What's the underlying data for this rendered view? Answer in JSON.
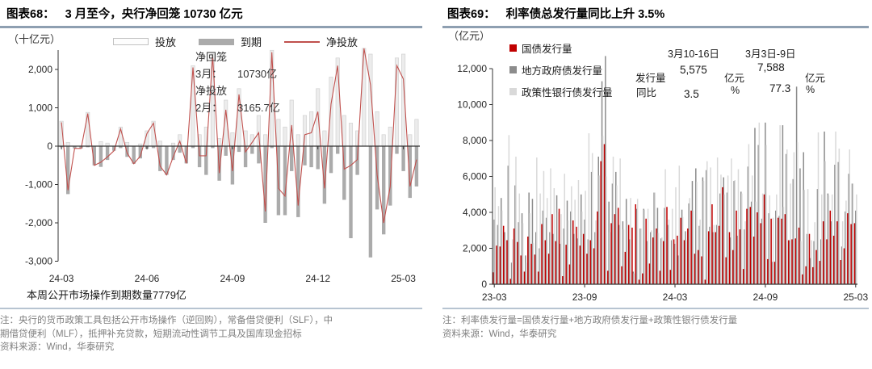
{
  "page": {
    "background": "#ffffff",
    "accent_rule_color": "#8e9fb1",
    "footer_rule_color": "#b7c4d1"
  },
  "left_panel": {
    "title_prefix": "图表68：",
    "title": "3 月至今，央行净回笼 10730 亿元",
    "unit": "（十亿元）",
    "annotation": {
      "l1": "净回笼",
      "l2_label": "3月：",
      "l2_value": "10730亿",
      "l3": "净投放",
      "l4_label": "2月：",
      "l4_value": "3165.7亿"
    },
    "bottom_note": "本周公开市场操作到期数量7779亿",
    "footnote_line1": "注：央行的货币政策工具包括公开市场操作（逆回购），常备借贷便利（SLF），中",
    "footnote_line2": "期借贷便利（MLF），抵押补充贷款，短期流动性调节工具及国库现金招标",
    "source": "资料来源：Wind，华泰研究"
  },
  "right_panel": {
    "title_prefix": "图表69：",
    "title": "利率债总发行量同比上升 3.5%",
    "unit": "（亿元）",
    "stats": {
      "period1": "3月10-16日",
      "period2": "3月3日-9日",
      "row1_label": "发行量",
      "row1_v1": "5,575",
      "row1_u1": "亿元",
      "row1_v2": "7,588",
      "row1_u2": "亿元",
      "row2_label": "同比",
      "row2_v1": "3.5",
      "row2_u1": "%",
      "row2_v2": "77.3",
      "row2_u2": "%"
    },
    "footnote_line1": "注：利率债发行量=国债发行量+地方政府债发行量+政策性银行债发行量",
    "source": "资料来源：Wind，华泰研究"
  },
  "chart_data": [
    {
      "type": "bar",
      "subtype": "bars-with-line",
      "title": "3 月至今，央行净回笼 10730 亿元",
      "ylabel": "十亿元",
      "ylim": [
        -3000,
        2500
      ],
      "grid": false,
      "legend_position": "top",
      "yticks": [
        {
          "v": 2000,
          "label": "2,000"
        },
        {
          "v": 1000,
          "label": "1,000"
        },
        {
          "v": 0,
          "label": "0"
        },
        {
          "v": -1000,
          "label": "-1,000"
        },
        {
          "v": -2000,
          "label": "-2,000"
        },
        {
          "v": -3000,
          "label": "-3,000"
        }
      ],
      "xticks": [
        {
          "i": 0,
          "label": "24-03"
        },
        {
          "i": 13,
          "label": "24-06"
        },
        {
          "i": 26,
          "label": "24-09"
        },
        {
          "i": 39,
          "label": "24-12"
        },
        {
          "i": 52,
          "label": "25-03"
        }
      ],
      "series": [
        {
          "name": "投放",
          "type": "bar",
          "direction": "positive",
          "color": "#ececec",
          "stroke": "#d2d2d2",
          "values": [
            650,
            100,
            0,
            0,
            880,
            0,
            120,
            80,
            0,
            500,
            100,
            0,
            60,
            400,
            650,
            130,
            0,
            80,
            300,
            0,
            2100,
            300,
            500,
            2400,
            200,
            1200,
            350,
            1500,
            400,
            300,
            800,
            300,
            2500,
            700,
            500,
            1200,
            300,
            800,
            900,
            1500,
            400,
            1800,
            2300,
            800,
            600,
            400,
            2550,
            2400,
            900,
            300,
            500,
            2300,
            2400,
            300,
            700
          ]
        },
        {
          "name": "到期",
          "type": "bar",
          "direction": "negative",
          "color": "#ababab",
          "values": [
            30,
            1250,
            60,
            60,
            30,
            500,
            540,
            360,
            120,
            50,
            280,
            460,
            320,
            70,
            50,
            650,
            750,
            360,
            170,
            450,
            50,
            550,
            750,
            50,
            900,
            250,
            1000,
            150,
            550,
            200,
            450,
            2000,
            50,
            1800,
            1800,
            650,
            1850,
            500,
            550,
            600,
            1500,
            700,
            200,
            1400,
            2400,
            750,
            0,
            2900,
            1650,
            2300,
            1550,
            200,
            650,
            1350,
            1050
          ]
        },
        {
          "name": "净投放",
          "type": "line",
          "color": "#c0504d",
          "values": [
            620,
            -1150,
            -60,
            -60,
            850,
            -500,
            -420,
            -280,
            -120,
            450,
            -180,
            -460,
            -260,
            330,
            600,
            -520,
            -750,
            -280,
            130,
            -450,
            2050,
            -250,
            -250,
            2350,
            -700,
            950,
            -650,
            1350,
            -150,
            100,
            350,
            -1700,
            2450,
            -1100,
            -1300,
            550,
            -1550,
            300,
            350,
            900,
            -1100,
            1100,
            2100,
            -600,
            -500,
            -350,
            2550,
            1600,
            -750,
            -2000,
            -1050,
            2100,
            1750,
            -1050,
            -350
          ]
        }
      ]
    },
    {
      "type": "bar",
      "subtype": "weekly-grouped",
      "title": "利率债总发行量同比上升 3.5%",
      "ylabel": "亿元",
      "ylim": [
        0,
        12000
      ],
      "grid": false,
      "legend_position": "top-left",
      "yticks": [
        {
          "v": 12000,
          "label": "12,000"
        },
        {
          "v": 10000,
          "label": "10,000"
        },
        {
          "v": 8000,
          "label": "8,000"
        },
        {
          "v": 6000,
          "label": "6,000"
        },
        {
          "v": 4000,
          "label": "4,000"
        },
        {
          "v": 2000,
          "label": "2,000"
        },
        {
          "v": 0,
          "label": "0"
        }
      ],
      "xticks": [
        {
          "i": 0,
          "label": "23-03"
        },
        {
          "i": 26,
          "label": "23-09"
        },
        {
          "i": 52,
          "label": "24-03"
        },
        {
          "i": 78,
          "label": "24-09"
        },
        {
          "i": 104,
          "label": "25-03"
        }
      ],
      "series": [
        {
          "name": "国债发行量",
          "type": "bar",
          "color": "#c00000",
          "values": [
            660,
            2150,
            2100,
            3250,
            2450,
            300,
            3100,
            2350,
            1600,
            700,
            2650,
            2250,
            1650,
            700,
            3350,
            2450,
            1700,
            3900,
            2400,
            4200,
            450,
            2200,
            1100,
            3550,
            3200,
            2150,
            2800,
            1700,
            2450,
            2000,
            4050,
            6850,
            7800,
            750,
            3400,
            3900,
            4250,
            1000,
            1800,
            3300,
            3150,
            4450,
            250,
            600,
            3650,
            1150,
            2600,
            3100,
            750,
            2400,
            4300,
            800,
            2500,
            2700,
            3700,
            2450,
            3100,
            4100,
            1700,
            1900,
            1550,
            250,
            2950,
            4450,
            2900,
            3250,
            5400,
            1500,
            2900,
            1900,
            4100,
            3050,
            850,
            4200,
            4300,
            2650,
            4000,
            3400,
            5000,
            1400,
            3650,
            1250,
            3700,
            3650,
            3900,
            2450,
            2500,
            2550,
            3150,
            550,
            1000,
            2800,
            950,
            1900,
            1300,
            3500,
            2500,
            4100,
            2700,
            3500,
            1350,
            2000,
            3950,
            3350,
            3400
          ]
        },
        {
          "name": "地方政府债发行量",
          "type": "bar",
          "color": "#8c8c8c",
          "values": [
            3600,
            3300,
            4800,
            2900,
            6600,
            1200,
            5500,
            3450,
            3950,
            1600,
            5100,
            4750,
            2900,
            2000,
            4100,
            3700,
            2900,
            2800,
            4950,
            2250,
            3100,
            4650,
            4050,
            2800,
            2550,
            5000,
            3600,
            2500,
            6250,
            2900,
            7100,
            11300,
            12700,
            4600,
            5600,
            6250,
            3300,
            3500,
            4750,
            2500,
            700,
            4200,
            3100,
            4200,
            2400,
            2900,
            5100,
            4250,
            2550,
            4250,
            3300,
            2450,
            2250,
            1600,
            4150,
            2950,
            4500,
            5750,
            6450,
            3250,
            5950,
            6350,
            3200,
            2900,
            3300,
            5050,
            5950,
            5100,
            2600,
            5750,
            2700,
            5150,
            3050,
            6550,
            4600,
            8700,
            7750,
            3650,
            9000,
            3950,
            1250,
            4100,
            3800,
            8850,
            7250,
            2450,
            5850,
            11000,
            6450,
            7350,
            2800,
            1450,
            2400,
            5300,
            2500,
            8500,
            5050,
            3500,
            6650,
            6800,
            2100,
            4050,
            6150,
            5600,
            4100
          ]
        },
        {
          "name": "政策性银行债发行量",
          "type": "bar",
          "color": "#d9d9d9",
          "values": [
            5400,
            4350,
            4100,
            2450,
            8300,
            2500,
            7100,
            5050,
            3400,
            1200,
            3950,
            2300,
            7050,
            5050,
            6300,
            4800,
            6450,
            5350,
            4000,
            3900,
            6150,
            3550,
            5450,
            4700,
            5800,
            4050,
            5200,
            8400,
            7300,
            3550,
            6050,
            8250,
            6000,
            2900,
            7100,
            5500,
            7000,
            3050,
            3500,
            4800,
            600,
            4750,
            3100,
            4150,
            4200,
            3000,
            5100,
            2850,
            2600,
            6400,
            3600,
            4200,
            5400,
            6600,
            3750,
            2450,
            4800,
            4100,
            5700,
            3600,
            5750,
            6850,
            6500,
            3300,
            7050,
            6100,
            5000,
            6050,
            7000,
            5800,
            6400,
            5050,
            3500,
            7800,
            6050,
            4600,
            9000,
            5050,
            7750,
            4950,
            3700,
            5000,
            8850,
            4300,
            7500,
            5600,
            7350,
            7900,
            2400,
            5250,
            5300,
            2450,
            3450,
            8450,
            5000,
            6850,
            4950,
            5000,
            8500,
            7550,
            3500,
            4650,
            7500,
            5600,
            5000
          ]
        }
      ]
    }
  ]
}
